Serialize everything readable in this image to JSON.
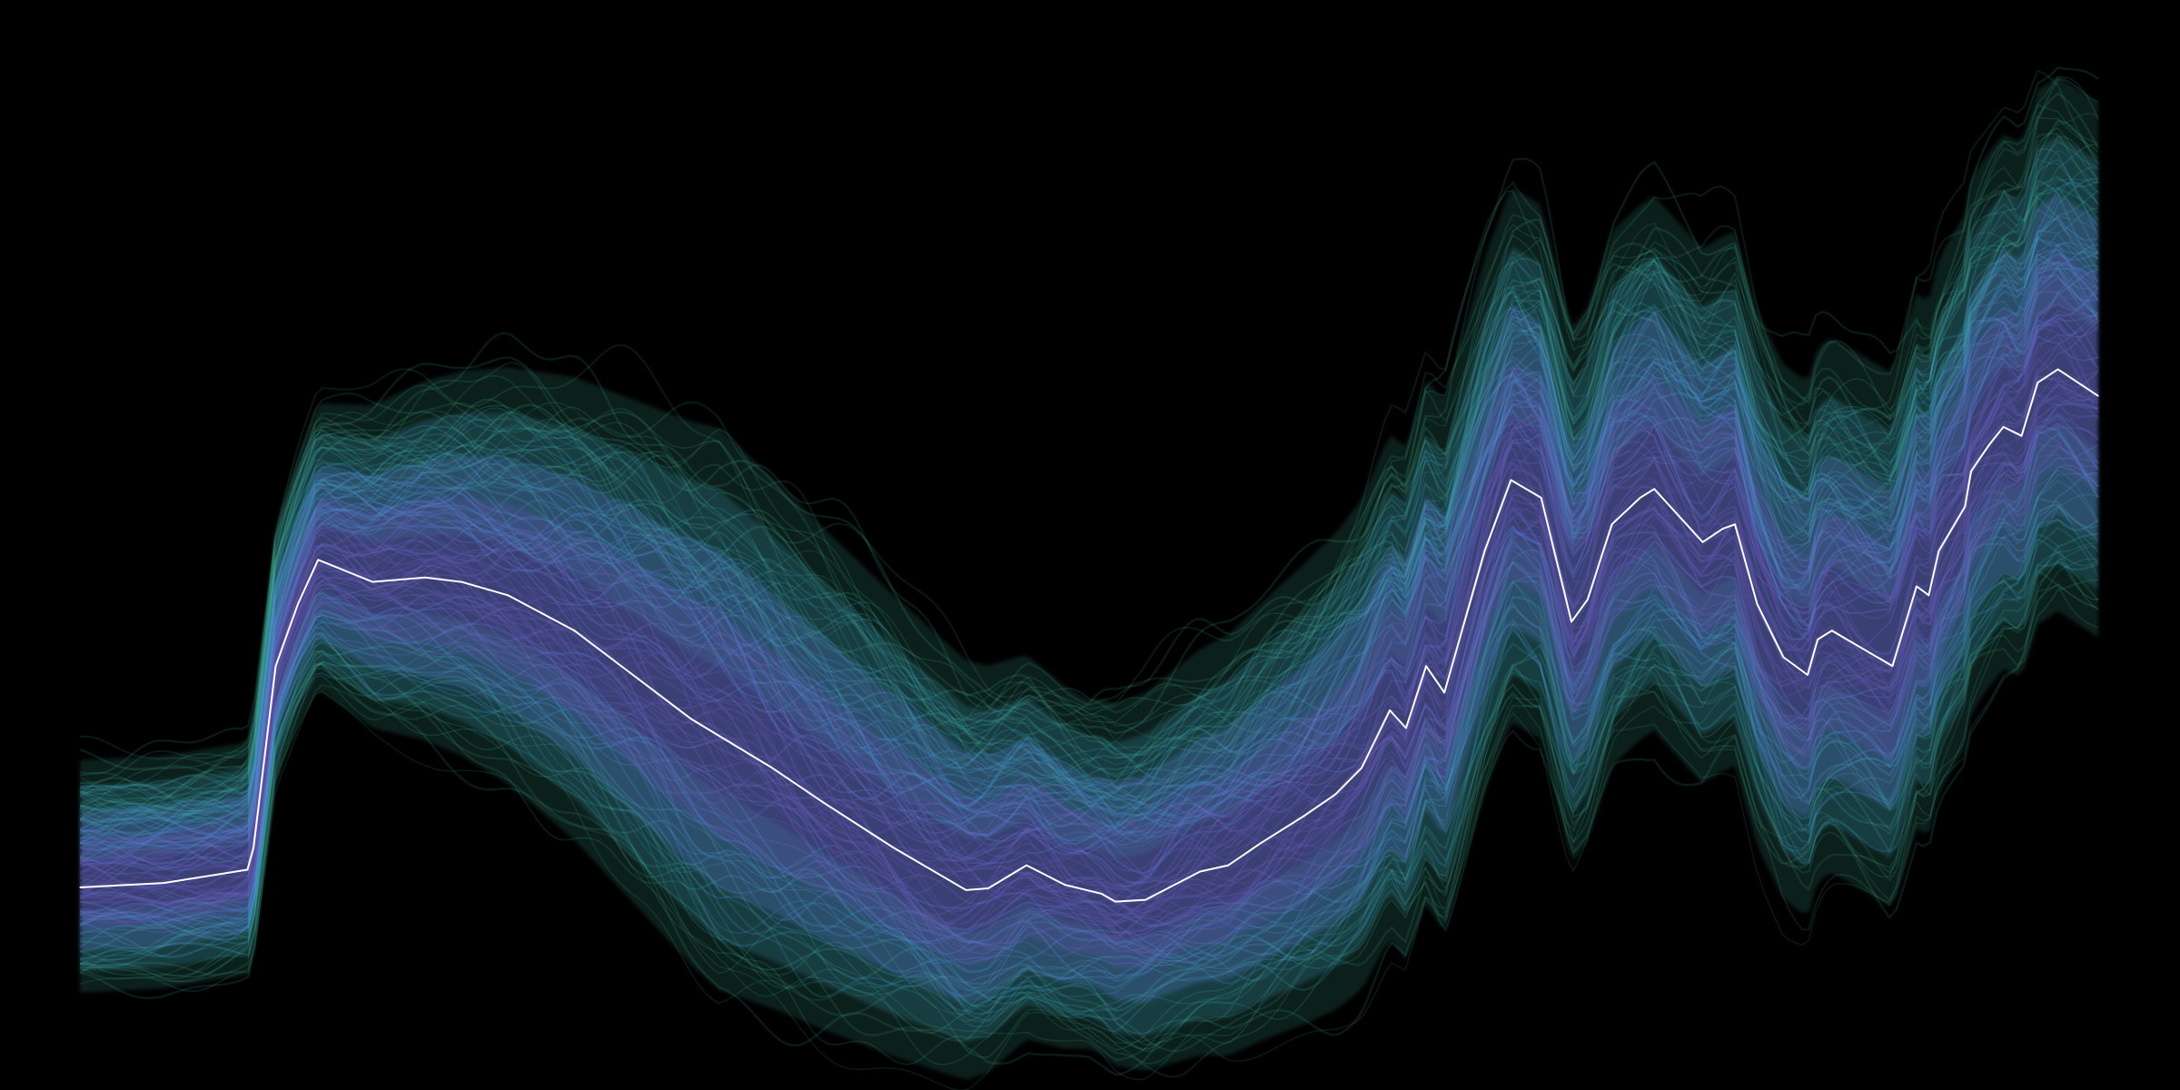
{
  "chart_data": {
    "type": "line",
    "title": "",
    "xlabel": "",
    "ylabel": "",
    "axes_visible": false,
    "grid": false,
    "legend": "none",
    "xlim": [
      0,
      100
    ],
    "ylim": [
      0,
      100
    ],
    "background_color": "#000000",
    "band_colors": [
      "#4fc6a8",
      "#3fa3c8",
      "#5a7fd6",
      "#5b4fa8",
      "#3d2a66"
    ],
    "median_color": "#ffffff",
    "x": [
      0,
      4.15,
      8.3,
      8.6,
      9.7,
      10.8,
      11.8,
      14.5,
      17.1,
      18.9,
      21.2,
      24.5,
      27.4,
      30.3,
      34.3,
      36.9,
      40.3,
      43.9,
      45.0,
      46.9,
      48.8,
      50.6,
      51.3,
      52.8,
      55.5,
      56.9,
      58.5,
      60.6,
      62.2,
      63.5,
      64.9,
      65.7,
      66.7,
      67.6,
      69.6,
      70.9,
      72.4,
      73.9,
      74.7,
      75.9,
      77.3,
      78.0,
      79.4,
      80.4,
      81.4,
      82.0,
      83.1,
      84.4,
      85.6,
      86.1,
      86.8,
      88.3,
      89.8,
      91.0,
      91.6,
      92.1,
      93.4,
      93.7,
      94.6,
      95.3,
      96.2,
      97.0,
      98.0,
      100.0
    ],
    "series": [
      {
        "values": [
          8,
          8.5,
          10,
          12.5,
          33,
          40,
          45,
          42.5,
          43,
          42.5,
          41,
          37,
          32,
          27,
          21.5,
          17.5,
          12.5,
          7.7,
          7.9,
          10.5,
          8.3,
          7.3,
          6.4,
          6.6,
          9.8,
          10.5,
          13,
          16,
          18.5,
          21.5,
          28,
          26,
          33,
          30,
          46,
          54,
          52,
          38,
          40.5,
          49,
          52,
          53,
          49.5,
          47,
          48.5,
          49,
          40,
          34,
          32,
          36,
          37,
          35,
          33,
          42,
          41,
          46,
          51,
          55,
          58,
          60,
          59,
          65,
          66.5,
          63.5
        ]
      }
    ]
  }
}
